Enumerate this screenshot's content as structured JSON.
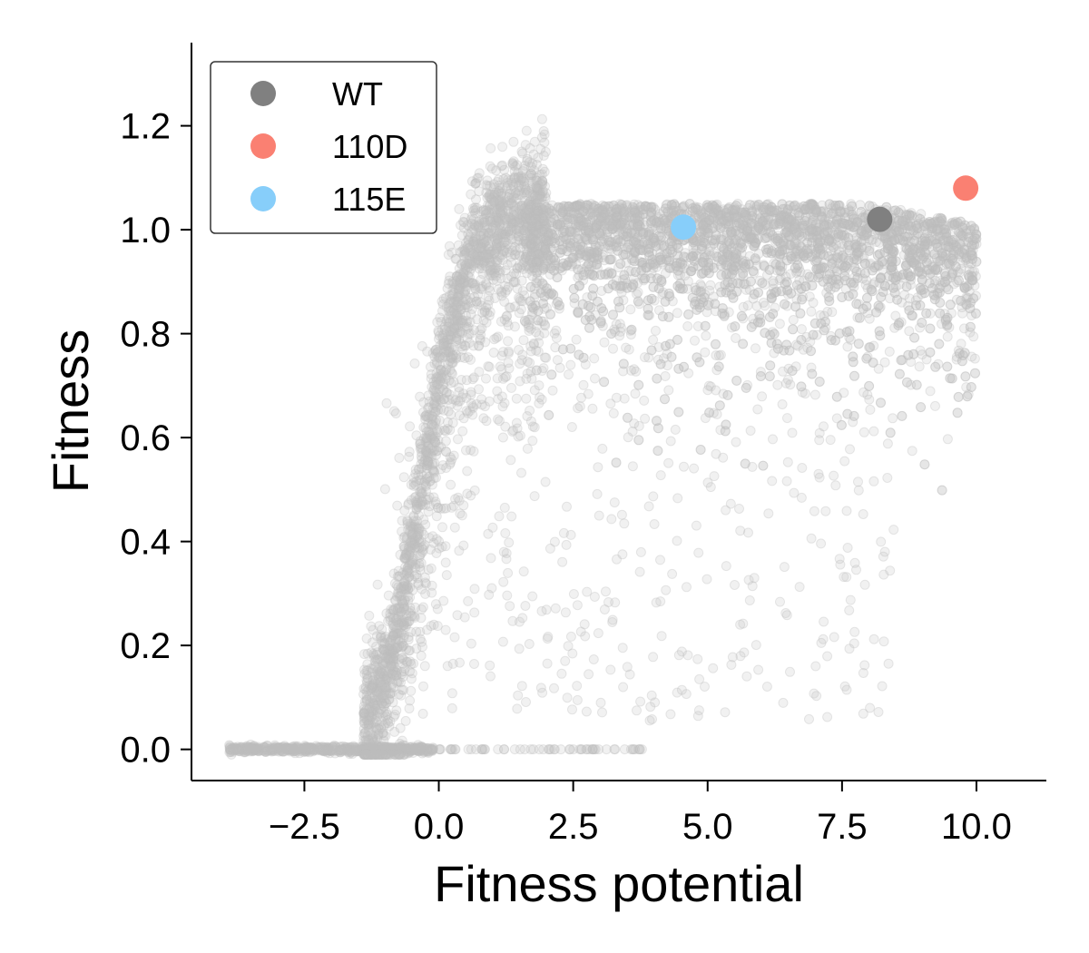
{
  "chart_data": {
    "type": "scatter",
    "title": "",
    "xlabel": "Fitness potential",
    "ylabel": "Fitness",
    "xlim": [
      -4.6,
      11.3
    ],
    "ylim": [
      -0.06,
      1.36
    ],
    "xticks": [
      -2.5,
      0.0,
      2.5,
      5.0,
      7.5,
      10.0
    ],
    "xtick_labels": [
      "−2.5",
      "0.0",
      "2.5",
      "5.0",
      "7.5",
      "10.0"
    ],
    "yticks": [
      0.0,
      0.2,
      0.4,
      0.6,
      0.8,
      1.0,
      1.2
    ],
    "ytick_labels": [
      "0.0",
      "0.2",
      "0.4",
      "0.6",
      "0.8",
      "1.0",
      "1.2"
    ],
    "grid": false,
    "legend_position": "top-left",
    "background_cloud": {
      "description_color": "#bdbdbd",
      "segments": [
        {
          "x_range": [
            -3.9,
            -0.1
          ],
          "fitness": 0.0
        },
        {
          "x_range": [
            -1.2,
            1.9
          ],
          "fitness_range": [
            0.0,
            1.0
          ]
        },
        {
          "x_range": [
            1.9,
            9.8
          ],
          "fitness_range": [
            0.75,
            1.07
          ]
        }
      ]
    },
    "series": [
      {
        "name": "WT",
        "color": "#808080",
        "points": [
          {
            "x": 8.2,
            "y": 1.02
          }
        ]
      },
      {
        "name": "110D",
        "color": "#fa8072",
        "points": [
          {
            "x": 9.8,
            "y": 1.08
          }
        ]
      },
      {
        "name": "115E",
        "color": "#87cefa",
        "points": [
          {
            "x": 4.55,
            "y": 1.005
          }
        ]
      }
    ]
  }
}
